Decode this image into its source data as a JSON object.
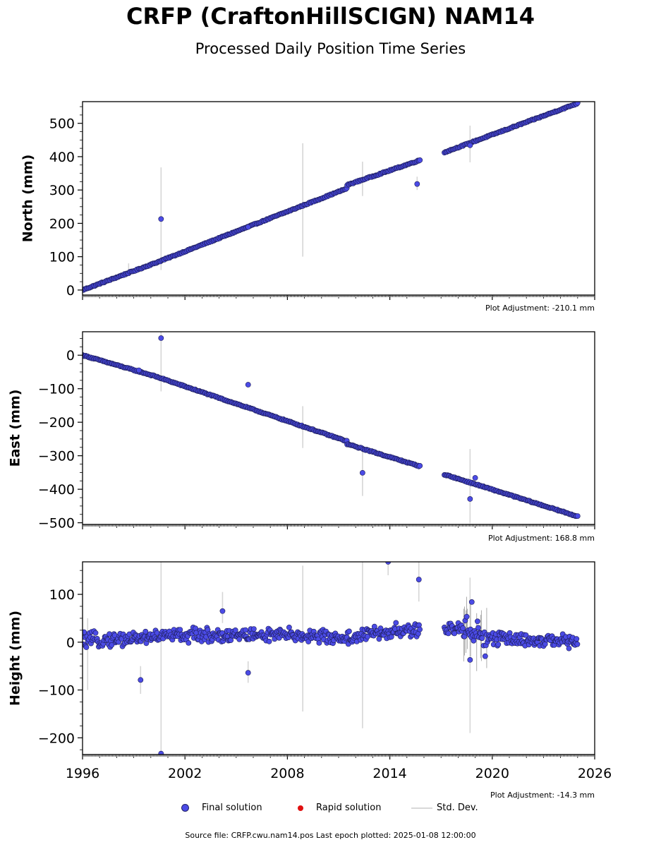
{
  "header": {
    "title": "CRFP (CraftonHillSCIGN) NAM14",
    "subtitle": "Processed Daily Position Time Series"
  },
  "legend": {
    "final": "Final solution",
    "rapid": "Rapid solution",
    "std": "Std. Dev."
  },
  "footer": "Source file: CRFP.cwu.nam14.pos  Last epoch plotted: 2025-01-08 12:00:00",
  "colors": {
    "final_fill": "#4b4be6",
    "final_edge": "#1c1c55",
    "rapid": "#e01010",
    "std_dev": "#d6d6d6"
  },
  "chart_data": [
    {
      "type": "scatter",
      "ylabel": "North (mm)",
      "annotation": "Plot Adjustment: -210.1 mm",
      "xlim": [
        1996,
        2026
      ],
      "ylim": [
        -15,
        565
      ],
      "yticks": [
        0,
        100,
        200,
        300,
        400,
        500
      ],
      "xticks": [
        1996,
        2002,
        2008,
        2014,
        2020,
        2026
      ],
      "show_x_tick_labels": false,
      "series": [
        {
          "segments": [
            {
              "x": [
                1996.0,
                2000.2,
                2011.5
              ],
              "y": [
                0,
                80,
                305
              ]
            },
            {
              "x": [
                2011.5,
                2015.8
              ],
              "y": [
                315,
                390
              ]
            },
            {
              "x": [
                2017.2,
                2025.0
              ],
              "y": [
                413,
                560
              ]
            }
          ],
          "outliers": [
            {
              "x": 2000.6,
              "y": 213
            },
            {
              "x": 2005.7,
              "y": 189
            },
            {
              "x": 2015.6,
              "y": 318
            },
            {
              "x": 2018.7,
              "y": 434
            }
          ],
          "std_dev_bars": [
            {
              "x": 2000.6,
              "y1": 60,
              "y2": 368
            },
            {
              "x": 2008.9,
              "y1": 100,
              "y2": 440
            },
            {
              "x": 2012.4,
              "y1": 282,
              "y2": 385
            },
            {
              "x": 2015.6,
              "y1": 300,
              "y2": 340
            },
            {
              "x": 2018.7,
              "y1": 383,
              "y2": 493
            },
            {
              "x": 1998.7,
              "y1": 48,
              "y2": 80
            }
          ]
        }
      ]
    },
    {
      "type": "scatter",
      "ylabel": "East (mm)",
      "annotation": "Plot Adjustment: 168.8 mm",
      "xlim": [
        1996,
        2026
      ],
      "ylim": [
        -505,
        70
      ],
      "yticks": [
        0,
        -100,
        -200,
        -300,
        -400,
        -500
      ],
      "xticks": [
        1996,
        2002,
        2008,
        2014,
        2020,
        2026
      ],
      "show_x_tick_labels": false,
      "series": [
        {
          "segments": [
            {
              "x": [
                1996.0,
                2000.2,
                2011.5
              ],
              "y": [
                0,
                -62,
                -257
              ]
            },
            {
              "x": [
                2011.5,
                2015.8
              ],
              "y": [
                -265,
                -332
              ]
            },
            {
              "x": [
                2017.2,
                2025.0
              ],
              "y": [
                -356,
                -481
              ]
            }
          ],
          "outliers": [
            {
              "x": 2000.6,
              "y": 51
            },
            {
              "x": 2005.7,
              "y": -88
            },
            {
              "x": 2012.4,
              "y": -351
            },
            {
              "x": 1999.3,
              "y": -45
            },
            {
              "x": 2018.7,
              "y": -429
            },
            {
              "x": 2019.0,
              "y": -366
            }
          ],
          "std_dev_bars": [
            {
              "x": 2000.6,
              "y1": -108,
              "y2": 70
            },
            {
              "x": 2008.9,
              "y1": -277,
              "y2": -152
            },
            {
              "x": 2012.4,
              "y1": -420,
              "y2": -290
            },
            {
              "x": 2018.7,
              "y1": -502,
              "y2": -280
            }
          ]
        }
      ]
    },
    {
      "type": "scatter",
      "ylabel": "Height (mm)",
      "annotation": "Plot Adjustment: -14.3 mm",
      "xlim": [
        1996,
        2026
      ],
      "ylim": [
        -235,
        168
      ],
      "yticks": [
        100,
        0,
        -100,
        -200
      ],
      "xticks": [
        1996,
        2002,
        2008,
        2014,
        2020,
        2026
      ],
      "xtick_labels": [
        "1996",
        "2002",
        "2008",
        "2014",
        "2020",
        "2026"
      ],
      "show_x_tick_labels": true,
      "series": [
        {
          "baseline": [
            {
              "x": 1996.0,
              "y": 3
            },
            {
              "x": 1998.0,
              "y": 6
            },
            {
              "x": 2001.0,
              "y": 14
            },
            {
              "x": 2005.0,
              "y": 15
            },
            {
              "x": 2009.0,
              "y": 14
            },
            {
              "x": 2011.5,
              "y": 8
            },
            {
              "x": 2013.0,
              "y": 18
            },
            {
              "x": 2015.8,
              "y": 26
            },
            {
              "x": 2017.2,
              "y": 25
            },
            {
              "x": 2018.8,
              "y": 30
            },
            {
              "x": 2019.6,
              "y": 8
            },
            {
              "x": 2022.0,
              "y": 5
            },
            {
              "x": 2025.0,
              "y": 0
            }
          ],
          "segments_x": [
            [
              1996.0,
              2015.8
            ],
            [
              2017.2,
              2025.0
            ]
          ],
          "outliers": [
            {
              "x": 1999.4,
              "y": -79
            },
            {
              "x": 2004.2,
              "y": 65
            },
            {
              "x": 2005.7,
              "y": -64
            },
            {
              "x": 2013.9,
              "y": 168
            },
            {
              "x": 2015.7,
              "y": 131
            },
            {
              "x": 2018.7,
              "y": -37
            },
            {
              "x": 2018.8,
              "y": 84
            },
            {
              "x": 2000.6,
              "y": -233
            }
          ],
          "std_dev_bars": [
            {
              "x": 1999.4,
              "y1": -108,
              "y2": -50
            },
            {
              "x": 2000.6,
              "y1": -235,
              "y2": 168
            },
            {
              "x": 2004.2,
              "y1": 40,
              "y2": 105
            },
            {
              "x": 2005.7,
              "y1": -85,
              "y2": -40
            },
            {
              "x": 2008.9,
              "y1": -145,
              "y2": 160
            },
            {
              "x": 2012.4,
              "y1": -180,
              "y2": 168
            },
            {
              "x": 2013.9,
              "y1": 140,
              "y2": 168
            },
            {
              "x": 2015.7,
              "y1": 85,
              "y2": 168
            },
            {
              "x": 2018.7,
              "y1": -190,
              "y2": 135
            },
            {
              "x": 1996.3,
              "y1": -100,
              "y2": 50
            }
          ]
        }
      ]
    }
  ]
}
